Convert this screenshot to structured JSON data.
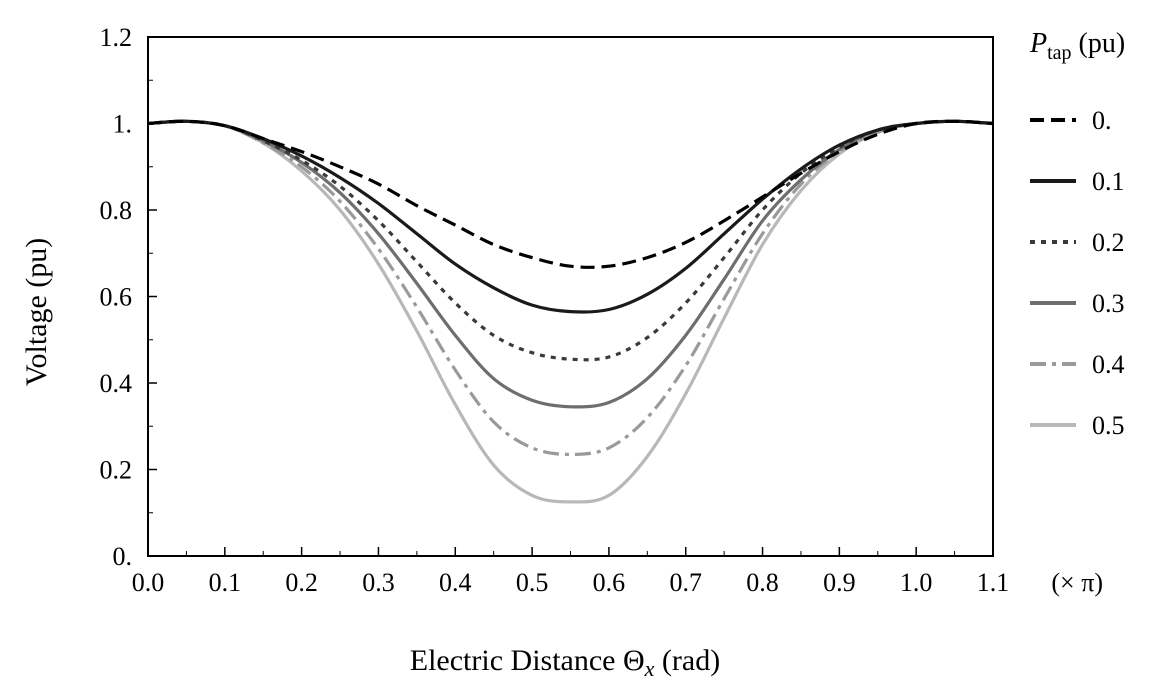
{
  "chart_data": {
    "type": "line",
    "title": "",
    "xlabel_main": "Electric Distance Θ",
    "xlabel_sub": "x",
    "xlabel_tail": " (rad)",
    "xunit_note": "(× π)",
    "ylabel": "Voltage (pu)",
    "xlim": [
      0.0,
      1.1
    ],
    "ylim": [
      0.0,
      1.2
    ],
    "xticks": [
      0.0,
      0.1,
      0.2,
      0.3,
      0.4,
      0.5,
      0.6,
      0.7,
      0.8,
      0.9,
      1.0,
      1.1
    ],
    "xtick_labels": [
      "0.0",
      "0.1",
      "0.2",
      "0.3",
      "0.4",
      "0.5",
      "0.6",
      "0.7",
      "0.8",
      "0.9",
      "1.0",
      "1.1"
    ],
    "yticks": [
      0.0,
      0.2,
      0.4,
      0.6,
      0.8,
      1.0,
      1.2
    ],
    "ytick_labels": [
      "0.",
      "0.2",
      "0.4",
      "0.6",
      "0.8",
      "1.",
      "1.2"
    ],
    "grid": false,
    "legend": {
      "placement": "right",
      "title_main": "P",
      "title_sub": "tap",
      "title_tail": " (pu)"
    },
    "x": [
      0.0,
      0.05,
      0.1,
      0.15,
      0.2,
      0.25,
      0.3,
      0.35,
      0.4,
      0.45,
      0.5,
      0.55,
      0.6,
      0.65,
      0.7,
      0.75,
      0.8,
      0.85,
      0.9,
      0.95,
      1.0,
      1.05,
      1.1
    ],
    "series": [
      {
        "name": "0.",
        "color": "#000000",
        "dash": "dash",
        "values": [
          1.0,
          1.005,
          0.995,
          0.965,
          0.935,
          0.9,
          0.86,
          0.81,
          0.765,
          0.72,
          0.69,
          0.67,
          0.67,
          0.69,
          0.725,
          0.775,
          0.83,
          0.885,
          0.935,
          0.975,
          1.0,
          1.005,
          1.0
        ]
      },
      {
        "name": "0.1",
        "color": "#1a1a1a",
        "dash": "solid",
        "values": [
          1.0,
          1.005,
          0.995,
          0.965,
          0.925,
          0.875,
          0.815,
          0.745,
          0.675,
          0.62,
          0.58,
          0.565,
          0.57,
          0.605,
          0.665,
          0.745,
          0.825,
          0.895,
          0.95,
          0.985,
          1.0,
          1.005,
          1.0
        ]
      },
      {
        "name": "0.2",
        "color": "#3a3a3a",
        "dash": "dot",
        "values": [
          1.0,
          1.005,
          0.995,
          0.96,
          0.915,
          0.855,
          0.775,
          0.68,
          0.585,
          0.51,
          0.47,
          0.455,
          0.46,
          0.505,
          0.585,
          0.69,
          0.8,
          0.885,
          0.945,
          0.985,
          1.0,
          1.005,
          1.0
        ]
      },
      {
        "name": "0.3",
        "color": "#6e6e6e",
        "dash": "solid",
        "values": [
          1.0,
          1.005,
          0.995,
          0.96,
          0.91,
          0.84,
          0.745,
          0.63,
          0.51,
          0.41,
          0.36,
          0.345,
          0.355,
          0.41,
          0.51,
          0.64,
          0.775,
          0.87,
          0.94,
          0.985,
          1.0,
          1.005,
          1.0
        ]
      },
      {
        "name": "0.4",
        "color": "#9a9a9a",
        "dash": "dashdot",
        "values": [
          1.0,
          1.005,
          0.995,
          0.955,
          0.9,
          0.82,
          0.71,
          0.575,
          0.43,
          0.31,
          0.25,
          0.235,
          0.25,
          0.32,
          0.44,
          0.595,
          0.745,
          0.86,
          0.935,
          0.98,
          1.0,
          1.005,
          1.0
        ]
      },
      {
        "name": "0.5",
        "color": "#b8b8b8",
        "dash": "solid",
        "values": [
          1.0,
          1.005,
          0.995,
          0.955,
          0.89,
          0.8,
          0.675,
          0.52,
          0.35,
          0.21,
          0.14,
          0.125,
          0.14,
          0.23,
          0.375,
          0.55,
          0.72,
          0.845,
          0.93,
          0.98,
          1.0,
          1.005,
          1.0
        ]
      }
    ]
  }
}
